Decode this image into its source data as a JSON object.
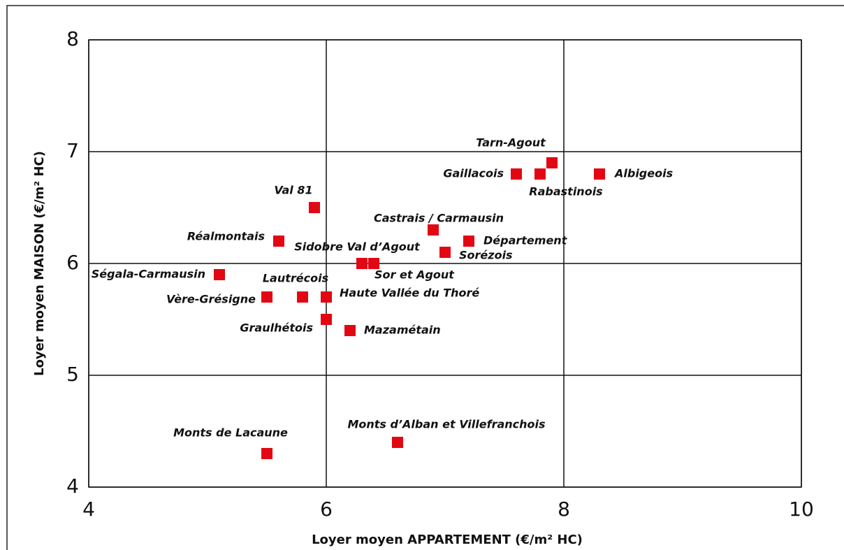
{
  "chart_data": {
    "type": "scatter",
    "xlabel": "Loyer moyen APPARTEMENT (€/m² HC)",
    "ylabel": "Loyer moyen MAISON (€/m² HC)",
    "xlim": [
      4,
      10
    ],
    "ylim": [
      4,
      8
    ],
    "xticks": [
      4,
      6,
      8,
      10
    ],
    "yticks": [
      4,
      5,
      6,
      7,
      8
    ],
    "grid": true,
    "color": "#e30613",
    "labels": [
      "Tarn-Agout",
      "Gaillacois",
      "Rabastinois",
      "Albigeois",
      "Val 81",
      "Castrais / Carmausin",
      "Département",
      "Réalmontais",
      "Sorézois",
      "Sidobre Val d’Agout",
      "Sor et Agout",
      "Ségala-Carmausin",
      "Vère-Grésigne",
      "Lautrécois",
      "Haute Vallée du Thoré",
      "Graulhétois",
      "Mazamétain",
      "Monts de Lacaune",
      "Monts d’Alban et Villefranchois"
    ],
    "x": [
      7.9,
      7.6,
      7.8,
      8.3,
      5.9,
      6.9,
      7.2,
      5.6,
      7.0,
      6.3,
      6.4,
      5.1,
      5.5,
      5.8,
      6.0,
      6.0,
      6.2,
      5.5,
      6.6
    ],
    "values": [
      6.9,
      6.8,
      6.8,
      6.8,
      6.5,
      6.3,
      6.2,
      6.2,
      6.1,
      6.0,
      6.0,
      5.9,
      5.7,
      5.7,
      5.7,
      5.5,
      5.4,
      4.3,
      4.4
    ]
  }
}
